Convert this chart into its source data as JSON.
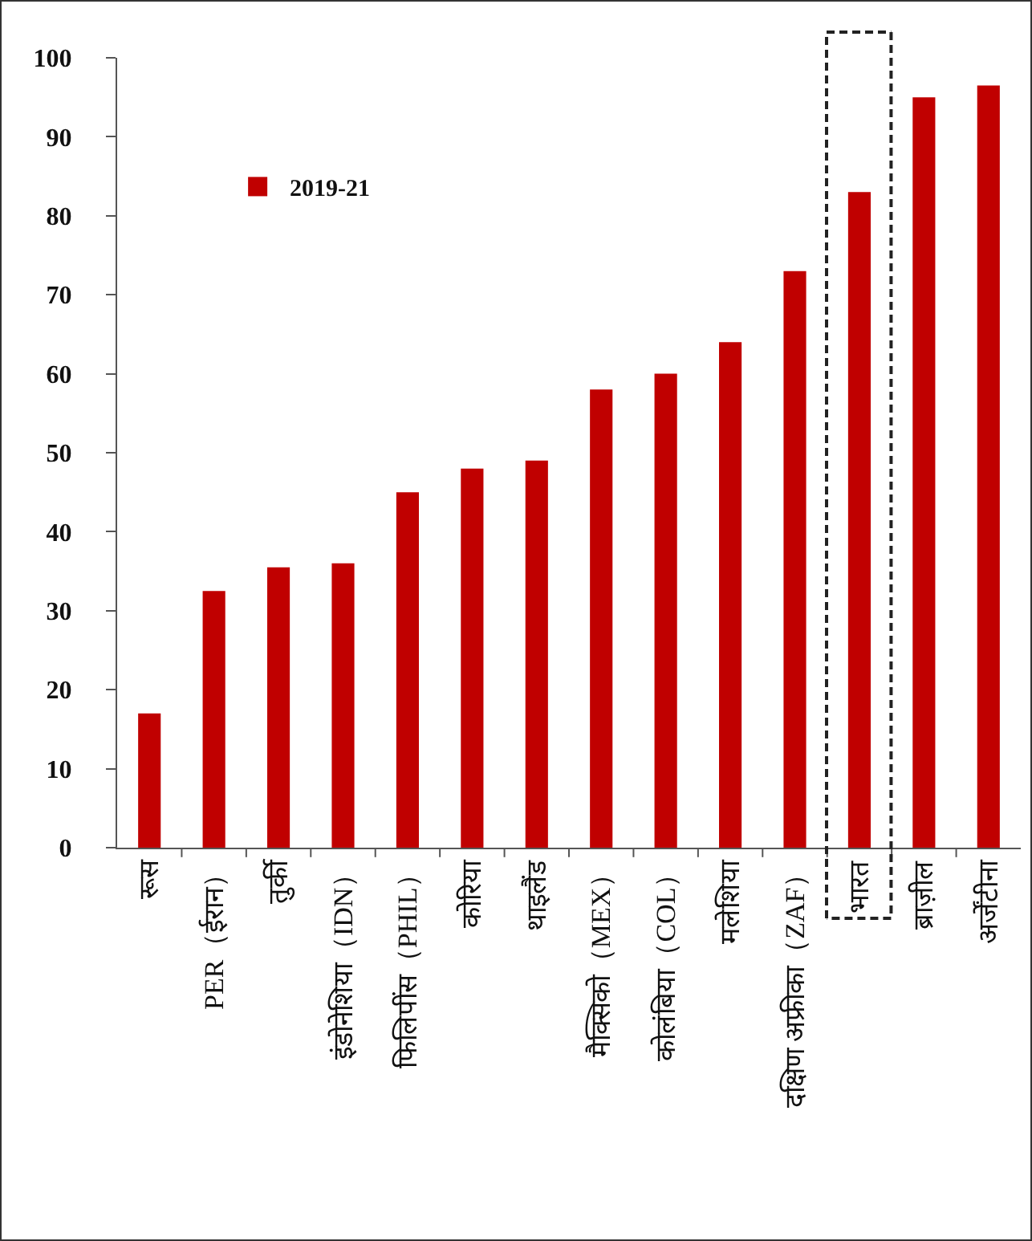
{
  "chart_data": {
    "type": "bar",
    "categories": [
      "रूस",
      "PER（ईरान）",
      "तुर्की",
      "इंडोनेशिया（IDN）",
      "फिलिपींस（PHIL）",
      "कोरिया",
      "थाइलैंड",
      "मैक्सिको（MEX）",
      "कोलंबिया（COL）",
      "मलेशिया",
      "दक्षिण अफ्रीका（ZAF）",
      "भारत",
      "ब्राज़ील",
      "अर्जेंटीना"
    ],
    "series": [
      {
        "name": "2019-21",
        "color": "#c00000",
        "values": [
          17,
          32.5,
          35.5,
          36,
          45,
          48,
          49,
          58,
          60,
          64,
          73,
          83,
          95,
          96.5
        ]
      }
    ],
    "ylim": [
      0,
      100
    ],
    "yticks": [
      0,
      10,
      20,
      30,
      40,
      50,
      60,
      70,
      80,
      90,
      100
    ],
    "grid": false,
    "legend": "top left"
  }
}
